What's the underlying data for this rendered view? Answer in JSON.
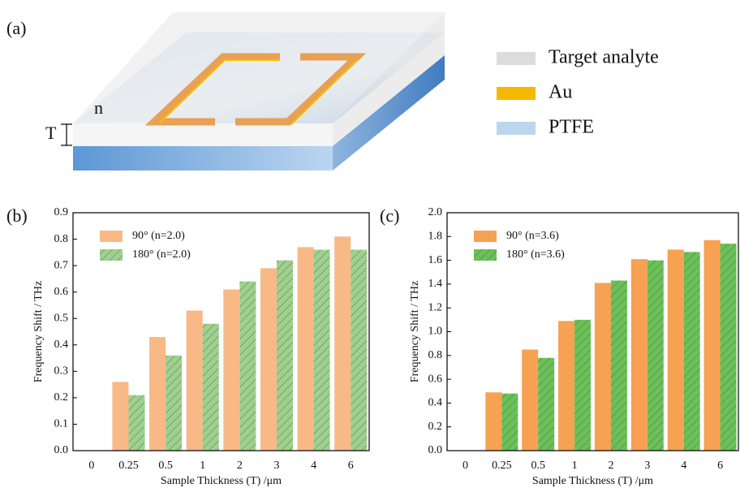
{
  "diagram": {
    "panel_label": "(a)",
    "n_label": "n",
    "t_label": "T",
    "legend": [
      {
        "label": "Target analyte",
        "color": "#dcdcdc"
      },
      {
        "label": "Au",
        "color": "#f5b800"
      },
      {
        "label": "PTFE",
        "color": "#bcd6ee"
      }
    ]
  },
  "chart_data": [
    {
      "type": "bar",
      "label": "(b)",
      "xlabel": "Sample Thickness (T) /μm",
      "ylabel": "Frequency Shift / THz",
      "categories": [
        "0",
        "0.25",
        "0.5",
        "1",
        "2",
        "3",
        "4",
        "6"
      ],
      "series": [
        {
          "name": "90° (n=2.0)",
          "color": "#f8b987",
          "hatch": false,
          "values": [
            0,
            0.26,
            0.43,
            0.53,
            0.61,
            0.69,
            0.77,
            0.81
          ]
        },
        {
          "name": "180° (n=2.0)",
          "color": "#9fd08f",
          "hatch": true,
          "values": [
            0,
            0.21,
            0.36,
            0.48,
            0.64,
            0.72,
            0.76,
            0.76
          ]
        }
      ],
      "ylim": [
        0,
        0.9
      ],
      "yticks": [
        {
          "value": 0,
          "label": "0.0"
        },
        0.1,
        0.2,
        0.3,
        0.4,
        0.5,
        0.6,
        0.7,
        0.8,
        0.9
      ]
    },
    {
      "type": "bar",
      "label": "(c)",
      "xlabel": "Sample Thickness (T) /μm",
      "ylabel": "Frequency Shift / THz",
      "categories": [
        "0",
        "0.25",
        "0.5",
        "1",
        "2",
        "3",
        "4",
        "6"
      ],
      "series": [
        {
          "name": "90° (n=3.6)",
          "color": "#f7a152",
          "hatch": false,
          "values": [
            0,
            0.49,
            0.85,
            1.09,
            1.41,
            1.61,
            1.69,
            1.77
          ]
        },
        {
          "name": "180° (n=3.6)",
          "color": "#6cc05a",
          "hatch": true,
          "values": [
            0,
            0.48,
            0.78,
            1.1,
            1.43,
            1.6,
            1.67,
            1.74
          ]
        }
      ],
      "ylim": [
        0,
        2
      ],
      "yticks": [
        {
          "value": 0,
          "label": "0.0"
        },
        0.2,
        0.4,
        0.6,
        0.8,
        {
          "value": 1,
          "label": "1.0"
        },
        1.2,
        1.4,
        1.6,
        1.8,
        {
          "value": 2,
          "label": "2.0"
        }
      ]
    }
  ]
}
